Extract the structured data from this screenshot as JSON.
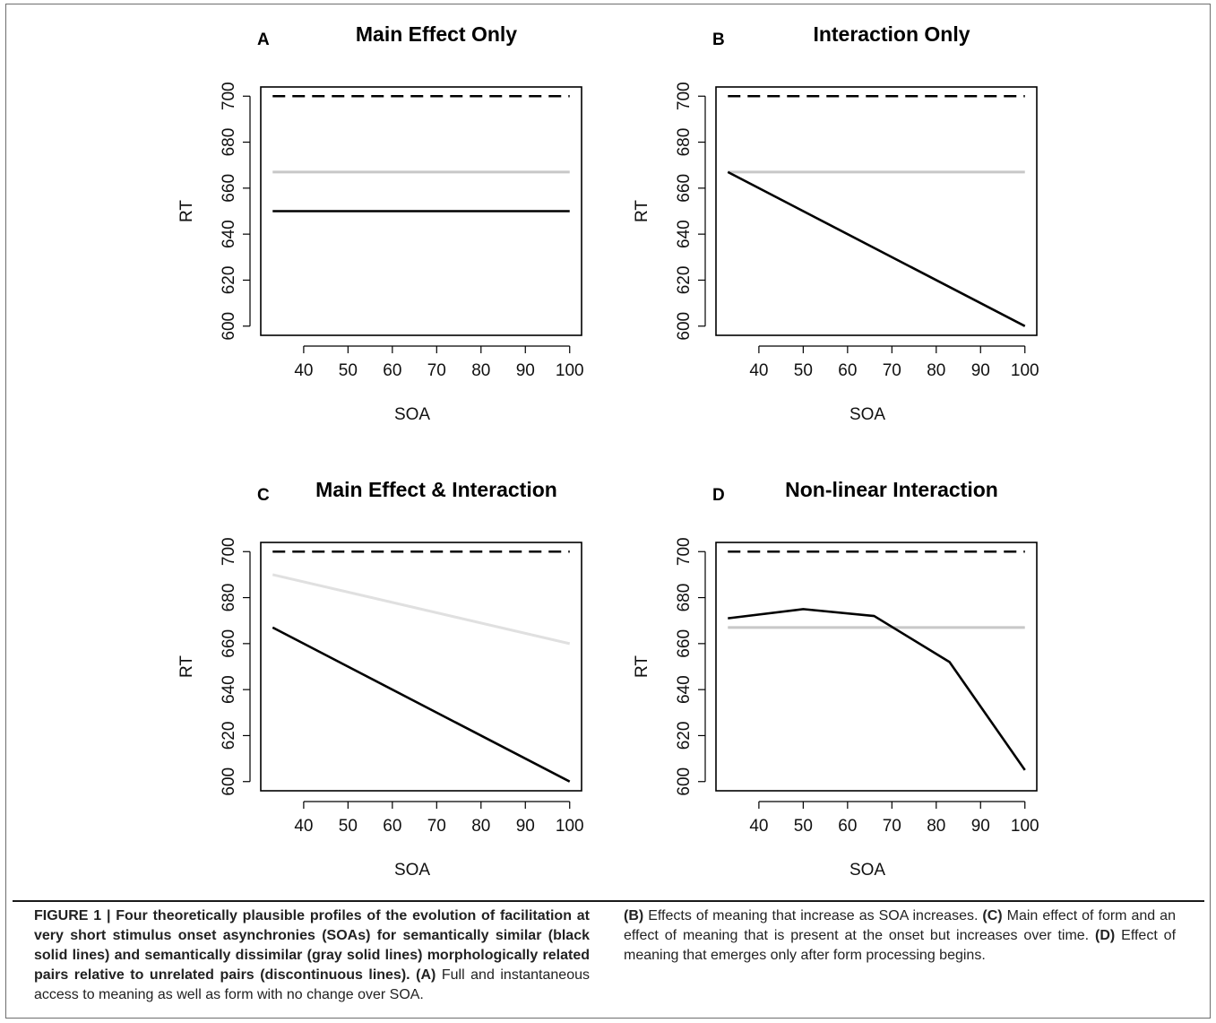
{
  "chart_data": [
    {
      "type": "line",
      "letter": "A",
      "title": "Main Effect Only",
      "xlabel": "SOA",
      "ylabel": "RT",
      "xlim": [
        33,
        100
      ],
      "ylim": [
        600,
        700
      ],
      "xticks": [
        40,
        50,
        60,
        70,
        80,
        90,
        100
      ],
      "yticks": [
        600,
        620,
        640,
        660,
        680,
        700
      ],
      "series": [
        {
          "style": "dashed",
          "color": "#000000",
          "x": [
            33,
            100
          ],
          "y": [
            700,
            700
          ]
        },
        {
          "style": "solid",
          "color": "#c8c8c8",
          "x": [
            33,
            100
          ],
          "y": [
            667,
            667
          ]
        },
        {
          "style": "solid",
          "color": "#000000",
          "x": [
            33,
            100
          ],
          "y": [
            650,
            650
          ]
        }
      ]
    },
    {
      "type": "line",
      "letter": "B",
      "title": "Interaction Only",
      "xlabel": "SOA",
      "ylabel": "RT",
      "xlim": [
        33,
        100
      ],
      "ylim": [
        600,
        700
      ],
      "xticks": [
        40,
        50,
        60,
        70,
        80,
        90,
        100
      ],
      "yticks": [
        600,
        620,
        640,
        660,
        680,
        700
      ],
      "series": [
        {
          "style": "dashed",
          "color": "#000000",
          "x": [
            33,
            100
          ],
          "y": [
            700,
            700
          ]
        },
        {
          "style": "solid",
          "color": "#c8c8c8",
          "x": [
            33,
            100
          ],
          "y": [
            667,
            667
          ]
        },
        {
          "style": "solid",
          "color": "#000000",
          "x": [
            33,
            100
          ],
          "y": [
            667,
            600
          ]
        }
      ]
    },
    {
      "type": "line",
      "letter": "C",
      "title": "Main Effect & Interaction",
      "xlabel": "SOA",
      "ylabel": "RT",
      "xlim": [
        33,
        100
      ],
      "ylim": [
        600,
        700
      ],
      "xticks": [
        40,
        50,
        60,
        70,
        80,
        90,
        100
      ],
      "yticks": [
        600,
        620,
        640,
        660,
        680,
        700
      ],
      "series": [
        {
          "style": "dashed",
          "color": "#000000",
          "x": [
            33,
            100
          ],
          "y": [
            700,
            700
          ]
        },
        {
          "style": "solid",
          "color": "#e0e0e0",
          "x": [
            33,
            100
          ],
          "y": [
            690,
            660
          ]
        },
        {
          "style": "solid",
          "color": "#000000",
          "x": [
            33,
            100
          ],
          "y": [
            667,
            600
          ]
        }
      ]
    },
    {
      "type": "line",
      "letter": "D",
      "title": "Non-linear Interaction",
      "xlabel": "SOA",
      "ylabel": "RT",
      "xlim": [
        33,
        100
      ],
      "ylim": [
        600,
        700
      ],
      "xticks": [
        40,
        50,
        60,
        70,
        80,
        90,
        100
      ],
      "yticks": [
        600,
        620,
        640,
        660,
        680,
        700
      ],
      "series": [
        {
          "style": "dashed",
          "color": "#000000",
          "x": [
            33,
            100
          ],
          "y": [
            700,
            700
          ]
        },
        {
          "style": "solid",
          "color": "#c8c8c8",
          "x": [
            33,
            100
          ],
          "y": [
            667,
            667
          ]
        },
        {
          "style": "solid",
          "color": "#000000",
          "x": [
            33,
            50,
            66,
            83,
            100
          ],
          "y": [
            671,
            675,
            672,
            652,
            605
          ]
        }
      ]
    }
  ],
  "caption": {
    "figure_label": "FIGURE 1 | Four theoretically plausible profiles of the evolution of facilitation at very short stimulus onset asynchronies (SOAs) for semantically similar (black solid lines) and semantically dissimilar (gray solid lines) morphologically related pairs relative to unrelated pairs (discontinuous lines).",
    "a_label": "(A)",
    "a_text": "Full and instantaneous access to meaning as well as form with no change over SOA.",
    "b_label": "(B)",
    "b_text": "Effects of meaning that increase as SOA increases.",
    "c_label": "(C)",
    "c_text": "Main effect of form and an effect of meaning that is present at the onset but increases over time.",
    "d_label": "(D)",
    "d_text": "Effect of meaning that emerges only after form processing begins."
  }
}
